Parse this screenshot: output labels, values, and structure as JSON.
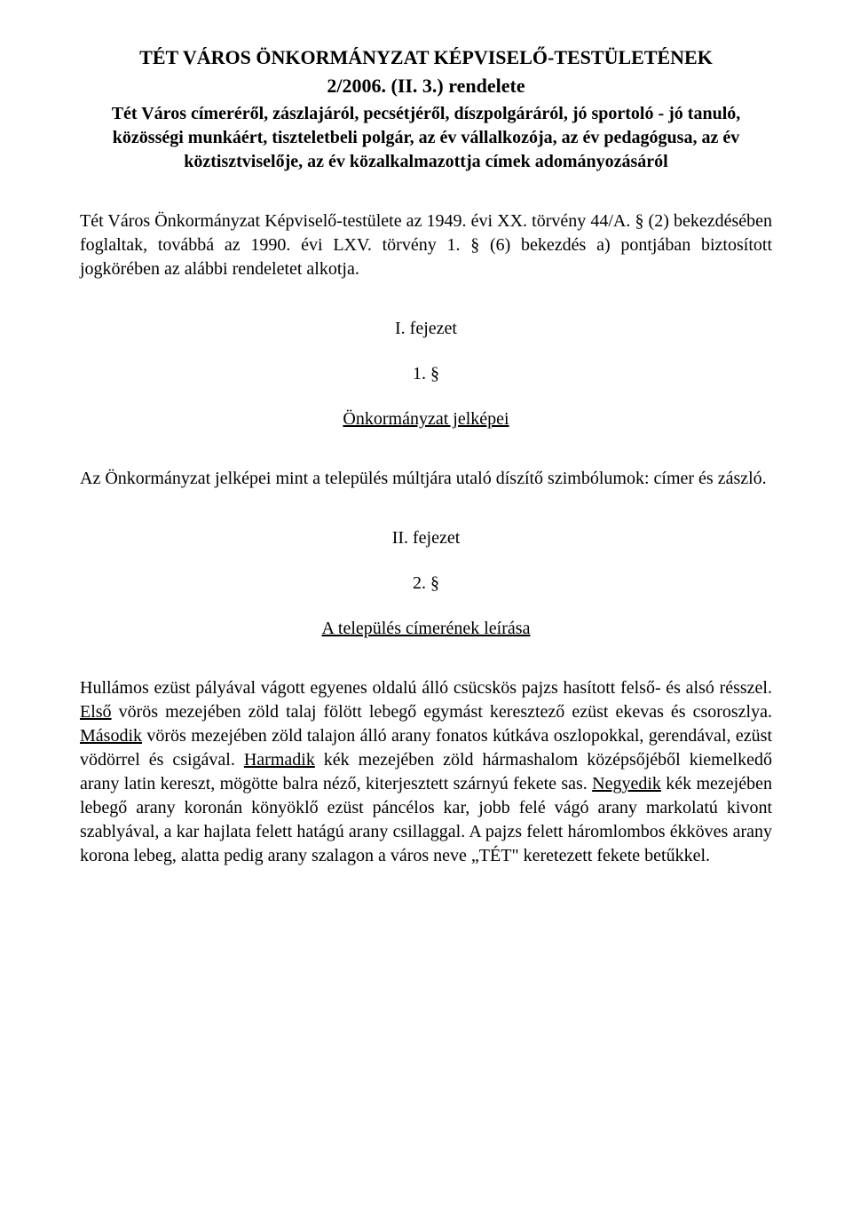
{
  "header": {
    "title": "TÉT VÁROS ÖNKORMÁNYZAT KÉPVISELŐ-TESTÜLETÉNEK",
    "subtitle": "2/2006. (II. 3.) rendelete",
    "description": "Tét Város címeréről, zászlajáról, pecsétjéről, díszpolgáráról, jó sportoló - jó tanuló, közösségi munkáért, tiszteletbeli polgár, az év vállalkozója, az év pedagógusa, az év köztisztviselője, az év közalkalmazottja címek adományozásáról"
  },
  "intro": "Tét Város Önkormányzat Képviselő-testülete az 1949. évi XX. törvény 44/A. § (2) bekezdésében foglaltak, továbbá az 1990. évi LXV. törvény 1. § (6) bekezdés a) pontjában biztosított jogkörében az alábbi rendeletet alkotja.",
  "chapter1": {
    "heading": "I. fejezet",
    "section_number": "1. §",
    "section_title": "Önkormányzat jelképei",
    "body": "Az Önkormányzat jelképei mint a település múltjára utaló díszítő szimbólumok: címer és zászló."
  },
  "chapter2": {
    "heading": "II. fejezet",
    "section_number": "2. §",
    "section_title": "A település címerének leírása",
    "body_prefix": "Hullámos ezüst pályával vágott egyenes oldalú álló csücskös pajzs hasított felső- és alsó résszel. ",
    "first_label": "Első",
    "first_text": " vörös mezejében zöld talaj fölött lebegő egymást keresztező ezüst ekevas és csoroszlya. ",
    "second_label": "Második",
    "second_text": " vörös mezejében zöld talajon álló arany fonatos kútkáva oszlopokkal, gerendával, ezüst vödörrel és csigával. ",
    "third_label": "Harmadik",
    "third_text": " kék mezejében zöld hármashalom középsőjéből kiemelkedő arany latin kereszt, mögötte balra néző, kiterjesztett szárnyú fekete sas. ",
    "fourth_label": "Negyedik",
    "fourth_text": " kék mezejében lebegő arany koronán könyöklő ezüst páncélos kar, jobb felé vágó arany markolatú kivont szablyával, a kar hajlata felett hatágú arany csillaggal. A pajzs felett háromlombos ékköves arany korona lebeg, alatta pedig arany szalagon a város neve „TÉT\" keretezett fekete betűkkel."
  }
}
